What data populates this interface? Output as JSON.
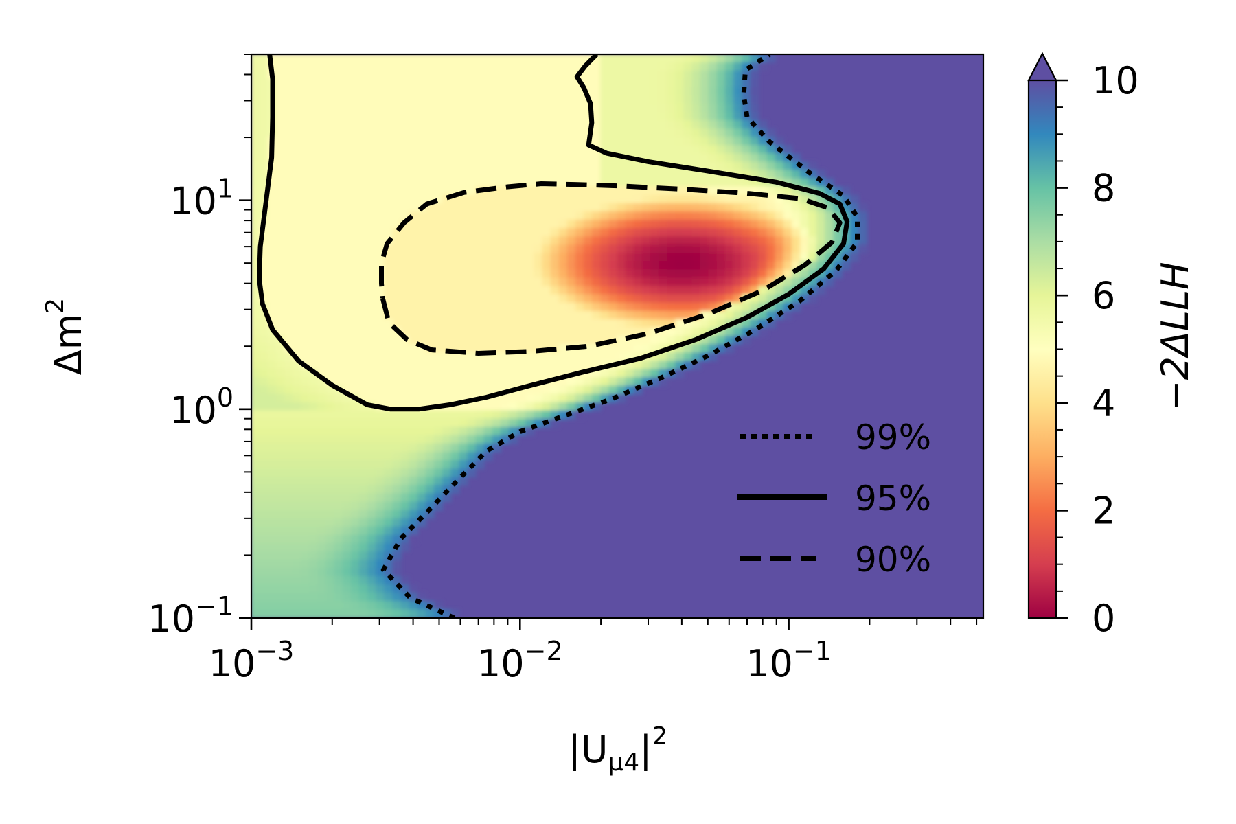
{
  "chart_data": {
    "type": "heatmap",
    "subtype": "filled-contour with confidence-level contours",
    "title": "",
    "xlabel": {
      "main": "|U",
      "sub": "μ4",
      "tail": "|",
      "sup": "2"
    },
    "ylabel": {
      "main": "Δm",
      "sup": "2"
    },
    "xscale": "log",
    "yscale": "log",
    "xlim": [
      0.001,
      0.53
    ],
    "ylim": [
      0.1,
      50
    ],
    "x_ticks": [
      {
        "value": 0.001,
        "base": "10",
        "exp": "−3"
      },
      {
        "value": 0.01,
        "base": "10",
        "exp": "−2"
      },
      {
        "value": 0.1,
        "base": "10",
        "exp": "−1"
      }
    ],
    "y_ticks": [
      {
        "value": 0.1,
        "base": "10",
        "exp": "−1"
      },
      {
        "value": 1,
        "base": "10",
        "exp": "0"
      },
      {
        "value": 10,
        "base": "10",
        "exp": "1"
      }
    ],
    "colorbar": {
      "label": "−2ΔLLH",
      "min": 0,
      "max": 10,
      "extend": "max",
      "ticks": [
        "0",
        "2",
        "4",
        "6",
        "8",
        "10"
      ],
      "colormap": "Spectral",
      "stops": [
        "#9e0142",
        "#d53e4f",
        "#f46d43",
        "#fdae61",
        "#fee08b",
        "#ffffbf",
        "#e6f598",
        "#abdda4",
        "#66c2a5",
        "#3288bd",
        "#5e4fa2"
      ],
      "over_color": "#5e4fa2"
    },
    "minimum": {
      "x": 0.04,
      "y": 5,
      "value": 0
    },
    "contours": [
      {
        "name": "99%",
        "style": "dotted",
        "points": [
          [
            0.0057,
            0.1
          ],
          [
            0.0039,
            0.125
          ],
          [
            0.0031,
            0.17
          ],
          [
            0.0036,
            0.24
          ],
          [
            0.0046,
            0.33
          ],
          [
            0.0058,
            0.45
          ],
          [
            0.0075,
            0.63
          ],
          [
            0.01,
            0.78
          ],
          [
            0.015,
            0.94
          ],
          [
            0.022,
            1.12
          ],
          [
            0.033,
            1.4
          ],
          [
            0.05,
            1.8
          ],
          [
            0.075,
            2.4
          ],
          [
            0.11,
            3.3
          ],
          [
            0.15,
            4.6
          ],
          [
            0.18,
            6.3
          ],
          [
            0.18,
            8.3
          ],
          [
            0.16,
            10.5
          ],
          [
            0.12,
            13.5
          ],
          [
            0.085,
            19
          ],
          [
            0.07,
            25
          ],
          [
            0.068,
            32
          ],
          [
            0.069,
            42
          ],
          [
            0.085,
            50
          ]
        ]
      },
      {
        "name": "95%",
        "style": "solid",
        "points": [
          [
            0.00117,
            50
          ],
          [
            0.0012,
            38
          ],
          [
            0.0012,
            25
          ],
          [
            0.00119,
            16
          ],
          [
            0.00113,
            9.5
          ],
          [
            0.00108,
            6
          ],
          [
            0.00107,
            4.2
          ],
          [
            0.0011,
            3.2
          ],
          [
            0.0012,
            2.4
          ],
          [
            0.0015,
            1.7
          ],
          [
            0.002,
            1.3
          ],
          [
            0.0027,
            1.05
          ],
          [
            0.0033,
            1.0
          ],
          [
            0.0042,
            1.0
          ],
          [
            0.0055,
            1.05
          ],
          [
            0.0075,
            1.14
          ],
          [
            0.011,
            1.3
          ],
          [
            0.017,
            1.5
          ],
          [
            0.028,
            1.75
          ],
          [
            0.045,
            2.15
          ],
          [
            0.07,
            2.75
          ],
          [
            0.1,
            3.55
          ],
          [
            0.135,
            4.7
          ],
          [
            0.16,
            6.2
          ],
          [
            0.165,
            7.9
          ],
          [
            0.155,
            9.6
          ],
          [
            0.13,
            10.8
          ],
          [
            0.09,
            12.2
          ],
          [
            0.05,
            13.8
          ],
          [
            0.03,
            15.3
          ],
          [
            0.021,
            16.8
          ],
          [
            0.018,
            18.4
          ],
          [
            0.0185,
            23.5
          ],
          [
            0.0183,
            29
          ],
          [
            0.0173,
            34.5
          ],
          [
            0.0163,
            39
          ],
          [
            0.0175,
            44
          ],
          [
            0.0193,
            50
          ]
        ]
      },
      {
        "name": "90%",
        "style": "dashed",
        "points": [
          [
            0.00308,
            3.4
          ],
          [
            0.00325,
            2.6
          ],
          [
            0.0038,
            2.15
          ],
          [
            0.0047,
            1.92
          ],
          [
            0.007,
            1.85
          ],
          [
            0.011,
            1.89
          ],
          [
            0.018,
            2.0
          ],
          [
            0.03,
            2.3
          ],
          [
            0.05,
            2.85
          ],
          [
            0.08,
            3.7
          ],
          [
            0.115,
            4.9
          ],
          [
            0.145,
            6.3
          ],
          [
            0.155,
            7.8
          ],
          [
            0.14,
            9.2
          ],
          [
            0.11,
            10.2
          ],
          [
            0.07,
            10.8
          ],
          [
            0.04,
            11.3
          ],
          [
            0.024,
            11.7
          ],
          [
            0.016,
            11.9
          ],
          [
            0.012,
            12.0
          ],
          [
            0.009,
            11.6
          ],
          [
            0.0062,
            10.9
          ],
          [
            0.0045,
            9.6
          ],
          [
            0.0037,
            7.8
          ],
          [
            0.0032,
            6.2
          ],
          [
            0.00305,
            5.0
          ],
          [
            0.00305,
            4.0
          ],
          [
            0.00308,
            3.4
          ]
        ]
      }
    ],
    "legend": {
      "placement": "lower-right",
      "entries": [
        {
          "label": "99%",
          "style": "dotted"
        },
        {
          "label": "95%",
          "style": "solid"
        },
        {
          "label": "90%",
          "style": "dashed"
        }
      ]
    }
  }
}
